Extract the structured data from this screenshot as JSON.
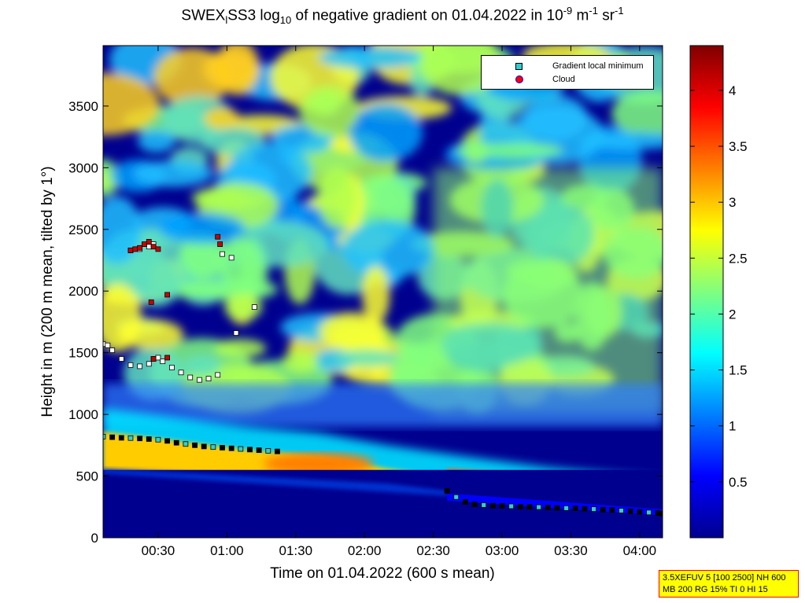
{
  "title": {
    "prefix": "SWEX",
    "sub1": "l",
    "mid": "SS3 log",
    "sub2": "10",
    "rest": " of negative gradient on 01.04.2022 in 10",
    "sup1": "-9",
    "unit1": " m",
    "sup2": "-1",
    "unit2": " sr",
    "sup3": "-1"
  },
  "legend": {
    "items": [
      {
        "label": "Gradient local minimum",
        "color": "#33cccc"
      },
      {
        "label": "Cloud",
        "color": "#ff0000"
      }
    ]
  },
  "info_box": {
    "line1": "3.5XEFUV 5 [100 2500] NH 600",
    "line2": "MB 200 RG 15% TI 0 HI 15"
  },
  "colorbar": {
    "ticks": [
      "0.5",
      "1",
      "1.5",
      "2",
      "2.5",
      "3",
      "3.5",
      "4"
    ],
    "range": [
      0,
      4.4
    ],
    "colormap": "jet"
  },
  "chart_data": {
    "type": "heatmap",
    "xlabel": "Time on 01.04.2022 (600 s mean)",
    "ylabel": "Height in m (200 m mean, tilted by 1°)",
    "x_ticks": [
      "00:30",
      "01:00",
      "01:30",
      "02:00",
      "02:30",
      "03:00",
      "03:30",
      "04:00"
    ],
    "x_tick_minutes": [
      30,
      60,
      90,
      120,
      150,
      180,
      210,
      240
    ],
    "xlim_minutes": [
      6,
      250
    ],
    "y_ticks": [
      "0",
      "500",
      "1000",
      "1500",
      "2000",
      "2500",
      "3000",
      "3500"
    ],
    "y_tick_values": [
      0,
      500,
      1000,
      1500,
      2000,
      2500,
      3000,
      3500
    ],
    "ylim": [
      0,
      3990
    ],
    "features": {
      "surface_layer_top_m": 550,
      "aerosol_layer_top_m": [
        800,
        720,
        650,
        600,
        500,
        420,
        320,
        230
      ],
      "aerosol_layer_time_min": [
        6,
        40,
        70,
        100,
        130,
        160,
        200,
        250
      ],
      "high_gradient_band_start_min": 156
    },
    "series": [
      {
        "name": "Gradient local minimum",
        "points": [
          [
            6,
            820
          ],
          [
            10,
            815
          ],
          [
            14,
            810
          ],
          [
            18,
            808
          ],
          [
            22,
            805
          ],
          [
            26,
            800
          ],
          [
            30,
            795
          ],
          [
            34,
            785
          ],
          [
            38,
            770
          ],
          [
            42,
            760
          ],
          [
            46,
            750
          ],
          [
            50,
            740
          ],
          [
            54,
            735
          ],
          [
            58,
            730
          ],
          [
            62,
            725
          ],
          [
            66,
            720
          ],
          [
            70,
            715
          ],
          [
            74,
            710
          ],
          [
            78,
            705
          ],
          [
            82,
            700
          ],
          [
            156,
            380
          ],
          [
            160,
            330
          ],
          [
            164,
            290
          ],
          [
            168,
            270
          ],
          [
            172,
            265
          ],
          [
            176,
            260
          ],
          [
            180,
            258
          ],
          [
            184,
            255
          ],
          [
            188,
            252
          ],
          [
            192,
            250
          ],
          [
            196,
            248
          ],
          [
            200,
            245
          ],
          [
            204,
            242
          ],
          [
            208,
            240
          ],
          [
            212,
            238
          ],
          [
            216,
            235
          ],
          [
            220,
            232
          ],
          [
            224,
            228
          ],
          [
            228,
            225
          ],
          [
            232,
            220
          ],
          [
            236,
            215
          ],
          [
            240,
            210
          ],
          [
            244,
            205
          ],
          [
            248,
            200
          ],
          [
            250,
            195
          ]
        ]
      },
      {
        "name": "Gradient local minimum (upper)",
        "points": [
          [
            6,
            1570
          ],
          [
            8,
            1560
          ],
          [
            10,
            1520
          ],
          [
            14,
            1450
          ],
          [
            18,
            1400
          ],
          [
            22,
            1390
          ],
          [
            26,
            1410
          ],
          [
            28,
            1450
          ],
          [
            30,
            1460
          ],
          [
            32,
            1430
          ],
          [
            36,
            1380
          ],
          [
            40,
            1340
          ],
          [
            44,
            1300
          ],
          [
            48,
            1280
          ],
          [
            52,
            1290
          ],
          [
            56,
            1320
          ],
          [
            64,
            1660
          ],
          [
            72,
            1870
          ],
          [
            18,
            2330
          ],
          [
            22,
            2340
          ],
          [
            26,
            2360
          ],
          [
            28,
            2380
          ],
          [
            58,
            2300
          ],
          [
            62,
            2270
          ]
        ]
      },
      {
        "name": "Cloud",
        "points": [
          [
            18,
            2330
          ],
          [
            20,
            2340
          ],
          [
            22,
            2350
          ],
          [
            24,
            2380
          ],
          [
            26,
            2400
          ],
          [
            28,
            2360
          ],
          [
            30,
            2340
          ],
          [
            28,
            1450
          ],
          [
            34,
            1460
          ],
          [
            27,
            1910
          ],
          [
            34,
            1970
          ],
          [
            56,
            2440
          ],
          [
            57,
            2380
          ]
        ]
      }
    ]
  }
}
